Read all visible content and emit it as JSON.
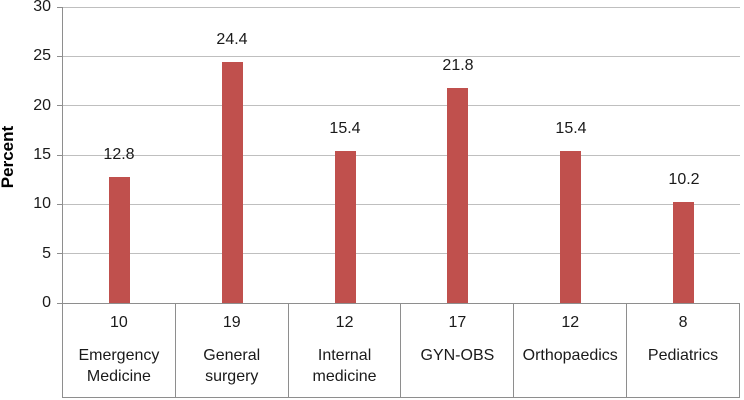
{
  "chart_data": {
    "type": "bar",
    "title": "",
    "ylabel": "Percent",
    "xlabel": "",
    "ylim": [
      0,
      30
    ],
    "ytick_step": 5,
    "grid": true,
    "legend_position": "none",
    "categories": [
      "Emergency Medicine",
      "General surgery",
      "Internal medicine",
      "GYN-OBS",
      "Orthopaedics",
      "Pediatrics"
    ],
    "category_counts": [
      "10",
      "19",
      "12",
      "17",
      "12",
      "8"
    ],
    "values": [
      12.8,
      24.4,
      15.4,
      21.8,
      15.4,
      10.2
    ],
    "value_labels": [
      "12.8",
      "24.4",
      "15.4",
      "21.8",
      "15.4",
      "10.2"
    ],
    "bar_color": "#c0504d",
    "gridline_color": "#bfbfbf",
    "axis_color": "#8e8e8e",
    "text_color": "#1a1a1a"
  }
}
